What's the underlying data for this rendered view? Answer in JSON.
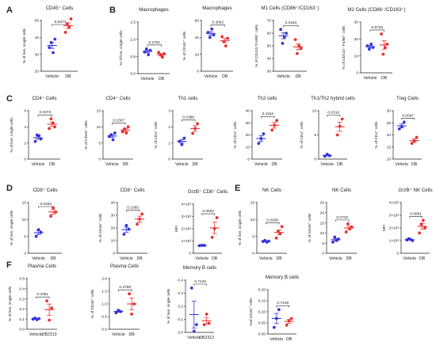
{
  "colors": {
    "vehicle": "#3535d8",
    "db": "#e8312f",
    "axis": "#222222"
  },
  "panels": [
    {
      "label": "A"
    },
    {
      "label": "B"
    },
    {
      "label": "C"
    },
    {
      "label": "D"
    },
    {
      "label": "E"
    },
    {
      "label": "F"
    }
  ],
  "chart_data": [
    {
      "type": "scatter",
      "panel": "A",
      "title": "CD45⁺ Cells",
      "ylabel": "% of live, single cells",
      "ylim": [
        20,
        50
      ],
      "ticks": [
        "20",
        "30",
        "40",
        "50"
      ],
      "groups": [
        "Vehicle",
        "DB"
      ],
      "pvalue": "0.0374",
      "vehicle": [
        34,
        37,
        31,
        39
      ],
      "db": [
        43,
        48,
        46,
        51
      ]
    },
    {
      "type": "scatter",
      "panel": "B",
      "title": "Macrophages",
      "ylabel": "% of live, single cells",
      "ylim": [
        0,
        1.5
      ],
      "ticks": [
        "0.0",
        "0.5",
        "1.0",
        "1.5"
      ],
      "groups": [
        "Vehicle",
        "DB"
      ],
      "pvalue": "0.2781",
      "vehicle": [
        0.63,
        0.72,
        0.55,
        0.68
      ],
      "db": [
        0.62,
        0.54,
        0.48,
        0.58
      ]
    },
    {
      "type": "scatter",
      "panel": "B",
      "title": "Macrophages",
      "ylabel": "% of CD45⁺ cells",
      "ylim": [
        0,
        60
      ],
      "ticks": [
        "0",
        "20",
        "40",
        "60"
      ],
      "groups": [
        "Vehicle",
        "DB"
      ],
      "pvalue": "0.3092",
      "vehicle": [
        46,
        40,
        50,
        43
      ],
      "db": [
        41,
        35,
        30,
        39
      ]
    },
    {
      "type": "scatter",
      "panel": "B",
      "title": "M1 Cells (CD86⁺/CD163⁻)",
      "ylabel": "% of CD11b⁺F4/80⁺ cells",
      "ylim": [
        30,
        70
      ],
      "ticks": [
        "30",
        "40",
        "50",
        "60",
        "70"
      ],
      "groups": [
        "Vehicle",
        "DB"
      ],
      "pvalue": "0.1943",
      "vehicle": [
        63,
        52,
        57,
        60
      ],
      "db": [
        55,
        44,
        50,
        48
      ]
    },
    {
      "type": "scatter",
      "panel": "B",
      "title": "M2 Cells (CD86⁻/CD163⁺)",
      "ylabel": "% of CD11b⁺ F4/80⁺ cells",
      "ylim": [
        0,
        30
      ],
      "ticks": [
        "0",
        "10",
        "20",
        "30"
      ],
      "groups": [
        "Vehicle",
        "DB"
      ],
      "pvalue": "0.8725",
      "vehicle": [
        16,
        14,
        17,
        15
      ],
      "db": [
        23,
        11,
        15,
        17
      ]
    },
    {
      "type": "scatter",
      "panel": "C",
      "title": "CD4⁺ Cells",
      "ylabel": "% of live, single cells",
      "ylim": [
        0,
        6
      ],
      "ticks": [
        "0",
        "2",
        "4",
        "6"
      ],
      "groups": [
        "Vehicle",
        "DB"
      ],
      "pvalue": "0.0373",
      "vehicle": [
        2.2,
        3.0,
        2.9,
        2.5
      ],
      "db": [
        3.8,
        5.0,
        4.5,
        4.0
      ]
    },
    {
      "type": "scatter",
      "panel": "C",
      "title": "CD4⁺ Cells",
      "ylabel": "% of CD45⁺ cells",
      "ylim": [
        0,
        15
      ],
      "ticks": [
        "0",
        "5",
        "10",
        "15"
      ],
      "groups": [
        "Vehicle",
        "DB"
      ],
      "pvalue": "0.1507",
      "vehicle": [
        7.0,
        7.6,
        6.0,
        8.1
      ],
      "db": [
        8.5,
        9.4,
        8.1,
        10.0
      ]
    },
    {
      "type": "scatter",
      "panel": "C",
      "title": "Th1 cells",
      "ylabel": "% of CD4⁺ cells",
      "ylim": [
        0,
        3
      ],
      "ticks": [
        "0",
        "1",
        "2",
        "3"
      ],
      "groups": [
        "Vehicle",
        "DB"
      ],
      "pvalue": "0.0386",
      "vehicle": [
        1.1,
        0.9,
        1.3
      ],
      "db": [
        1.6,
        1.9,
        2.2
      ]
    },
    {
      "type": "scatter",
      "panel": "C",
      "title": "Th2 cells",
      "ylabel": "% of CD4⁺ cells",
      "ylim": [
        0,
        40
      ],
      "ticks": [
        "0",
        "10",
        "20",
        "30",
        "40"
      ],
      "groups": [
        "Vehicle",
        "DB"
      ],
      "pvalue": "0.1164",
      "vehicle": [
        13,
        17,
        21
      ],
      "db": [
        24,
        28,
        32
      ]
    },
    {
      "type": "scatter",
      "panel": "C",
      "title": "Th1/Th2 hybrid cells",
      "ylabel": "% of CD4⁺ cells",
      "ylim": [
        0,
        10
      ],
      "ticks": [
        "0",
        "5",
        "10"
      ],
      "groups": [
        "Vehicle",
        "DB"
      ],
      "pvalue": "0.0316",
      "vehicle": [
        0.6,
        1.0,
        0.7
      ],
      "db": [
        5.0,
        6.8,
        8.3
      ]
    },
    {
      "type": "scatter",
      "panel": "C",
      "title": "Treg Cells",
      "ylabel": "% of CD4⁺ cells",
      "ylim": [
        10,
        30
      ],
      "ticks": [
        "10",
        "15",
        "20",
        "25",
        "30"
      ],
      "groups": [
        "Vehicle",
        "DB"
      ],
      "pvalue": "0.0067",
      "vehicle": [
        22.5,
        23.5,
        25.3
      ],
      "db": [
        16.5,
        17.5,
        19.0
      ]
    },
    {
      "type": "scatter",
      "panel": "D",
      "title": "CD8⁺ Cells",
      "ylabel": "% of live, single cells",
      "ylim": [
        0,
        15
      ],
      "ticks": [
        "0",
        "5",
        "10",
        "15"
      ],
      "groups": [
        "Vehicle",
        "DB"
      ],
      "pvalue": "0.0484",
      "vehicle": [
        5.0,
        7.0,
        6.2
      ],
      "db": [
        11.0,
        13.5,
        12.2
      ]
    },
    {
      "type": "scatter",
      "panel": "D",
      "title": "CD8⁺ Cells",
      "ylabel": "% of CD45⁺ cells",
      "ylim": [
        0,
        40
      ],
      "ticks": [
        "0",
        "10",
        "20",
        "30",
        "40"
      ],
      "groups": [
        "Vehicle",
        "DB"
      ],
      "pvalue": "0.1665",
      "vehicle": [
        15,
        22,
        19
      ],
      "db": [
        23,
        27,
        31
      ]
    },
    {
      "type": "scatter",
      "panel": "D",
      "title": "GrzB⁺ CD8⁺ Cells",
      "ylabel": "MFI",
      "ylim": [
        0,
        4000
      ],
      "ticks": [
        "0",
        "1×10³",
        "2×10³",
        "3×10³",
        "4×10³"
      ],
      "groups": [
        "Vehicle",
        "DB"
      ],
      "pvalue": "0.0602",
      "vehicle": [
        620,
        650,
        640
      ],
      "db": [
        1300,
        2000,
        2900
      ]
    },
    {
      "type": "scatter",
      "panel": "E",
      "title": "NK Cells",
      "ylabel": "% of live, single cells",
      "ylim": [
        0,
        15
      ],
      "ticks": [
        "0",
        "5",
        "10",
        "15"
      ],
      "groups": [
        "Vehicle",
        "DB"
      ],
      "pvalue": "0.0938",
      "vehicle": [
        3.5,
        3.8,
        3.3,
        3.6
      ],
      "db": [
        4.5,
        6.5,
        5.8,
        7.9
      ]
    },
    {
      "type": "scatter",
      "panel": "E",
      "title": "NK Cells",
      "ylabel": "% of CD45⁺ cells",
      "ylim": [
        0,
        25
      ],
      "ticks": [
        "0",
        "5",
        "10",
        "15",
        "20",
        "25"
      ],
      "groups": [
        "Vehicle",
        "DB"
      ],
      "pvalue": "0.0710",
      "vehicle": [
        5.5,
        8.0,
        6.3,
        7.0
      ],
      "db": [
        10.5,
        14.5,
        12.0,
        13.0
      ]
    },
    {
      "type": "scatter",
      "panel": "E",
      "title": "GrzB⁺ NK Cells",
      "ylabel": "MFI",
      "ylim": [
        0,
        4000
      ],
      "ticks": [
        "0",
        "1×10³",
        "2×10³",
        "3×10³",
        "4×10³"
      ],
      "groups": [
        "Vehicle",
        "DB"
      ],
      "pvalue": "0.0861",
      "vehicle": [
        1050,
        1150,
        1100,
        1000
      ],
      "db": [
        1600,
        2300,
        2600,
        2000
      ]
    },
    {
      "type": "scatter",
      "panel": "F",
      "title": "Plasma Cells",
      "ylabel": "% of live, single cells",
      "ylim": [
        0,
        0.5
      ],
      "ticks": [
        "0.0",
        "0.1",
        "0.2",
        "0.3",
        "0.4",
        "0.5"
      ],
      "groups": [
        "Vehicle",
        "DB2313"
      ],
      "pvalue": "0.3351",
      "vehicle": [
        0.1,
        0.11,
        0.095,
        0.105
      ],
      "db": [
        0.28,
        0.09,
        0.21
      ]
    },
    {
      "type": "scatter",
      "panel": "F",
      "title": "Plasma Cells",
      "ylabel": "% of CD45⁺ cells",
      "ylim": [
        0,
        2
      ],
      "ticks": [
        "0.0",
        "0.5",
        "1.0",
        "1.5",
        "2.0"
      ],
      "groups": [
        "Vehicle",
        "DB"
      ],
      "pvalue": "0.3759",
      "vehicle": [
        0.65,
        0.75,
        0.7
      ],
      "db": [
        1.4,
        0.6,
        1.0
      ]
    },
    {
      "type": "scatter",
      "panel": "F",
      "title": "Memory B cells",
      "ylabel": "% of live, single cells",
      "ylim": [
        0,
        0.4
      ],
      "ticks": [
        "0.0",
        "0.1",
        "0.2",
        "0.3",
        "0.4"
      ],
      "groups": [
        "Vehicle",
        "DB2313"
      ],
      "pvalue": "0.7420",
      "vehicle": [
        0.34,
        0.01,
        0.06
      ],
      "db": [
        0.06,
        0.14,
        0.07
      ]
    },
    {
      "type": "scatter",
      "panel": "F",
      "title": "Memory B cells",
      "ylabel": "%of CD45⁺ cells",
      "ylim": [
        0,
        0.2
      ],
      "ticks": [
        "0.00",
        "0.05",
        "0.10",
        "0.15",
        "0.20"
      ],
      "groups": [
        "Vehicle",
        "DB"
      ],
      "pvalue": "0.7449",
      "vehicle": [
        0.03,
        0.07,
        0.11
      ],
      "db": [
        0.04,
        0.06,
        0.07
      ]
    }
  ]
}
